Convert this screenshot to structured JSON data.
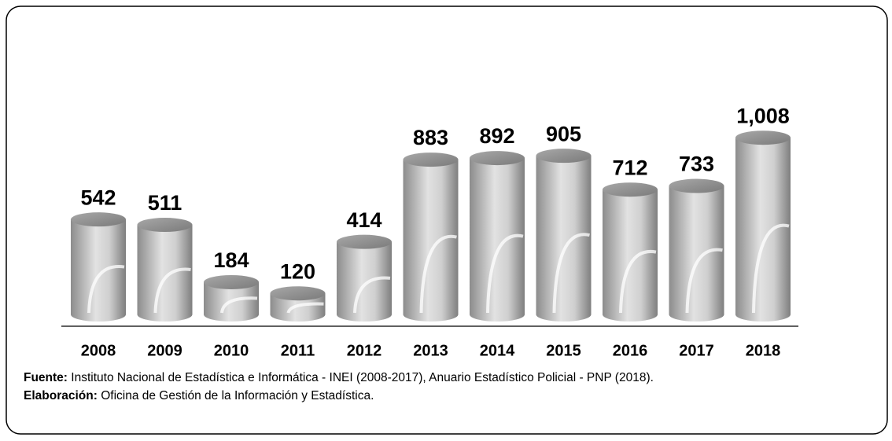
{
  "chart_data": {
    "type": "cylinder",
    "categories": [
      "2008",
      "2009",
      "2010",
      "2011",
      "2012",
      "2013",
      "2014",
      "2015",
      "2016",
      "2017",
      "2018"
    ],
    "values": [
      542,
      511,
      184,
      120,
      414,
      883,
      892,
      905,
      712,
      733,
      1008
    ],
    "value_labels": [
      "542",
      "511",
      "184",
      "120",
      "414",
      "883",
      "892",
      "905",
      "712",
      "733",
      "1,008"
    ]
  },
  "footer": {
    "source": {
      "label": "Fuente:",
      "text": "Instituto Nacional de Estadística e Informática - INEI (2008-2017), Anuario Estadístico Policial - PNP (2018)."
    },
    "elaboration": {
      "label": "Elaboración:",
      "text": "Oficina de Gestión de la Información y Estadística."
    }
  }
}
